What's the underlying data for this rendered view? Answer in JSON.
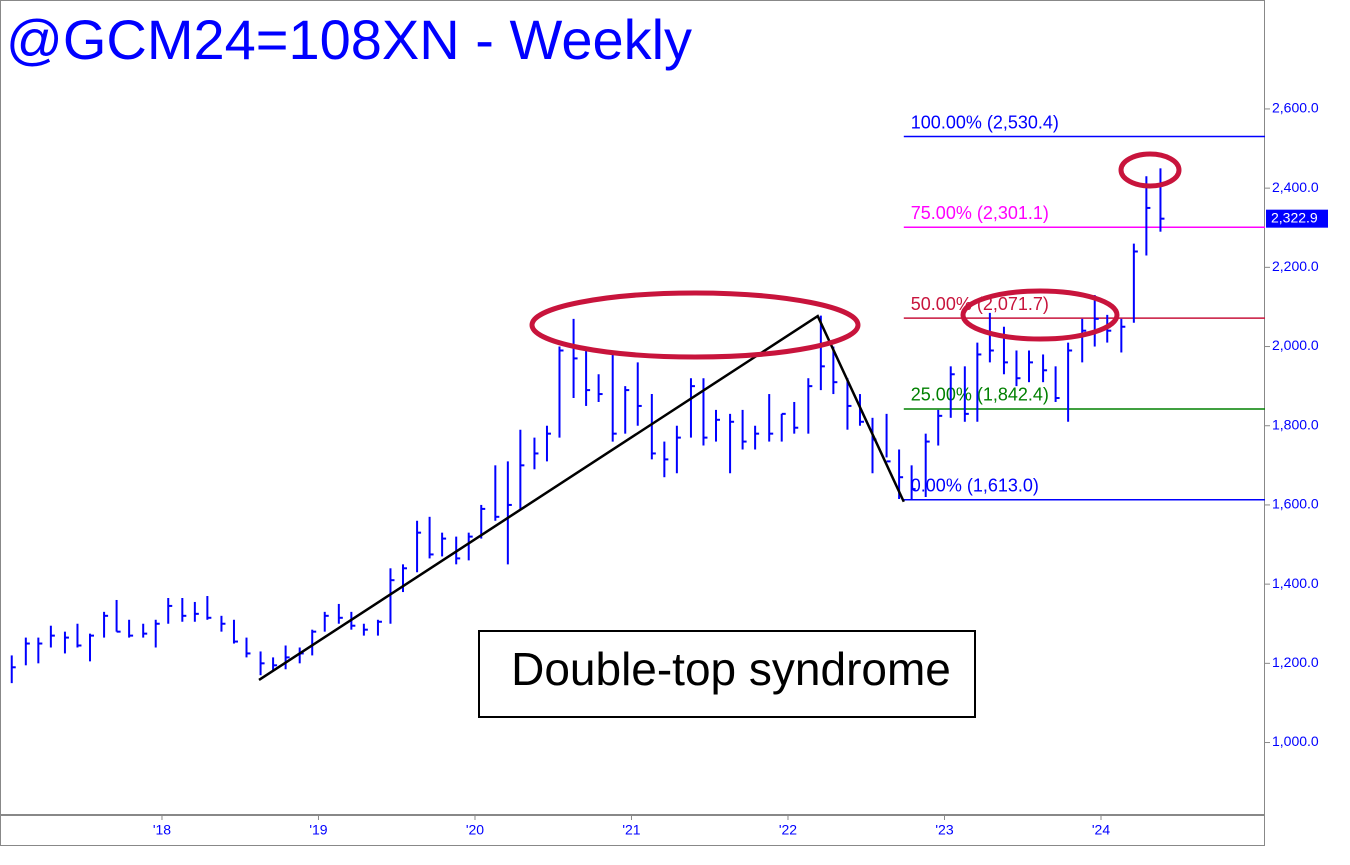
{
  "chart_data": {
    "type": "ohlc",
    "title": "@GCM24=108XN - Weekly",
    "annotation": "Double-top syndrome",
    "color": "#0000ff",
    "x": [
      2017.04,
      2017.13,
      2017.21,
      2017.29,
      2017.38,
      2017.46,
      2017.54,
      2017.63,
      2017.71,
      2017.79,
      2017.88,
      2017.96,
      2018.04,
      2018.13,
      2018.21,
      2018.29,
      2018.38,
      2018.46,
      2018.54,
      2018.63,
      2018.71,
      2018.79,
      2018.88,
      2018.96,
      2019.04,
      2019.13,
      2019.21,
      2019.29,
      2019.38,
      2019.46,
      2019.54,
      2019.63,
      2019.71,
      2019.79,
      2019.88,
      2019.96,
      2020.04,
      2020.13,
      2020.21,
      2020.29,
      2020.38,
      2020.46,
      2020.54,
      2020.63,
      2020.71,
      2020.79,
      2020.88,
      2020.96,
      2021.04,
      2021.13,
      2021.21,
      2021.29,
      2021.38,
      2021.46,
      2021.54,
      2021.63,
      2021.71,
      2021.79,
      2021.88,
      2021.96,
      2022.04,
      2022.13,
      2022.21,
      2022.29,
      2022.38,
      2022.46,
      2022.54,
      2022.63,
      2022.71,
      2022.79,
      2022.88,
      2022.96,
      2023.04,
      2023.13,
      2023.21,
      2023.29,
      2023.38,
      2023.46,
      2023.54,
      2023.63,
      2023.71,
      2023.79,
      2023.88,
      2023.96,
      2024.04,
      2024.13,
      2024.21,
      2024.29,
      2024.38
    ],
    "high": [
      1220,
      1265,
      1265,
      1295,
      1280,
      1300,
      1275,
      1330,
      1360,
      1310,
      1300,
      1310,
      1365,
      1365,
      1355,
      1370,
      1320,
      1310,
      1265,
      1230,
      1215,
      1245,
      1240,
      1285,
      1330,
      1350,
      1330,
      1300,
      1310,
      1440,
      1450,
      1560,
      1570,
      1530,
      1520,
      1530,
      1600,
      1700,
      1710,
      1790,
      1770,
      1800,
      2000,
      2070,
      2000,
      1930,
      1980,
      1900,
      1960,
      1880,
      1760,
      1800,
      1920,
      1920,
      1840,
      1830,
      1840,
      1800,
      1880,
      1830,
      1860,
      1920,
      2078,
      2000,
      1920,
      1880,
      1820,
      1830,
      1740,
      1700,
      1780,
      1840,
      1950,
      1950,
      2010,
      2085,
      2050,
      1990,
      1990,
      1980,
      1950,
      2010,
      2070,
      2130,
      2080,
      2070,
      2260,
      2430,
      2450
    ],
    "low": [
      1150,
      1195,
      1200,
      1240,
      1225,
      1240,
      1205,
      1265,
      1280,
      1265,
      1265,
      1240,
      1300,
      1305,
      1305,
      1310,
      1280,
      1250,
      1215,
      1170,
      1180,
      1185,
      1200,
      1220,
      1280,
      1300,
      1285,
      1270,
      1270,
      1300,
      1380,
      1430,
      1465,
      1470,
      1450,
      1460,
      1515,
      1560,
      1450,
      1590,
      1690,
      1710,
      1770,
      1870,
      1850,
      1860,
      1760,
      1780,
      1800,
      1715,
      1670,
      1680,
      1770,
      1750,
      1760,
      1680,
      1740,
      1740,
      1760,
      1760,
      1780,
      1780,
      1890,
      1880,
      1790,
      1800,
      1680,
      1720,
      1615,
      1615,
      1620,
      1750,
      1820,
      1810,
      1810,
      1960,
      1930,
      1900,
      1910,
      1910,
      1860,
      1810,
      1960,
      2000,
      2010,
      1985,
      2060,
      2230,
      2290
    ],
    "close": [
      1190,
      1250,
      1250,
      1270,
      1265,
      1245,
      1270,
      1320,
      1280,
      1270,
      1275,
      1300,
      1345,
      1320,
      1325,
      1315,
      1300,
      1255,
      1225,
      1200,
      1195,
      1215,
      1225,
      1280,
      1320,
      1315,
      1295,
      1285,
      1305,
      1410,
      1440,
      1530,
      1475,
      1515,
      1465,
      1520,
      1590,
      1570,
      1600,
      1700,
      1730,
      1780,
      1990,
      1970,
      1890,
      1880,
      1780,
      1890,
      1850,
      1730,
      1715,
      1770,
      1900,
      1770,
      1815,
      1810,
      1760,
      1780,
      1780,
      1830,
      1795,
      1900,
      1950,
      1910,
      1850,
      1810,
      1765,
      1710,
      1670,
      1640,
      1760,
      1825,
      1930,
      1830,
      1980,
      1990,
      1960,
      1920,
      1960,
      1940,
      1870,
      1990,
      2040,
      2070,
      2040,
      2050,
      2240,
      2350,
      2322.9
    ],
    "last_price": {
      "value": 2322.9,
      "label": "2,322.9"
    },
    "fib_x_start": 2022.74,
    "fib_levels": [
      {
        "value": 2530.4,
        "label": "100.00% (2,530.4)",
        "color": "#0000ff"
      },
      {
        "value": 2301.1,
        "label": "75.00% (2,301.1)",
        "color": "#ff00ff"
      },
      {
        "value": 2071.7,
        "label": "50.00% (2,071.7)",
        "color": "#c8143c"
      },
      {
        "value": 1842.4,
        "label": "25.00% (1,842.4)",
        "color": "#008000"
      },
      {
        "value": 1613.0,
        "label": "0.00% (1,613.0)",
        "color": "#0000ff"
      }
    ],
    "trendline": {
      "x": [
        2018.62,
        2022.19,
        2022.74
      ],
      "y": [
        1158,
        2077,
        1608
      ]
    },
    "xlim": [
      2016.965,
      2025.048
    ],
    "ylim": [
      817,
      2865
    ],
    "xticks": [
      {
        "value": 2018,
        "label": "'18"
      },
      {
        "value": 2019,
        "label": "'19"
      },
      {
        "value": 2020,
        "label": "'20"
      },
      {
        "value": 2021,
        "label": "'21"
      },
      {
        "value": 2022,
        "label": "'22"
      },
      {
        "value": 2023,
        "label": "'23"
      },
      {
        "value": 2024,
        "label": "'24"
      }
    ],
    "yticks": [
      {
        "value": 1000,
        "label": "1,000.0"
      },
      {
        "value": 1200,
        "label": "1,200.0"
      },
      {
        "value": 1400,
        "label": "1,400.0"
      },
      {
        "value": 1600,
        "label": "1,600.0"
      },
      {
        "value": 1800,
        "label": "1,800.0"
      },
      {
        "value": 2000,
        "label": "2,000.0"
      },
      {
        "value": 2200,
        "label": "2,200.0"
      },
      {
        "value": 2400,
        "label": "2,400.0"
      },
      {
        "value": 2600,
        "label": "2,600.0"
      }
    ]
  }
}
